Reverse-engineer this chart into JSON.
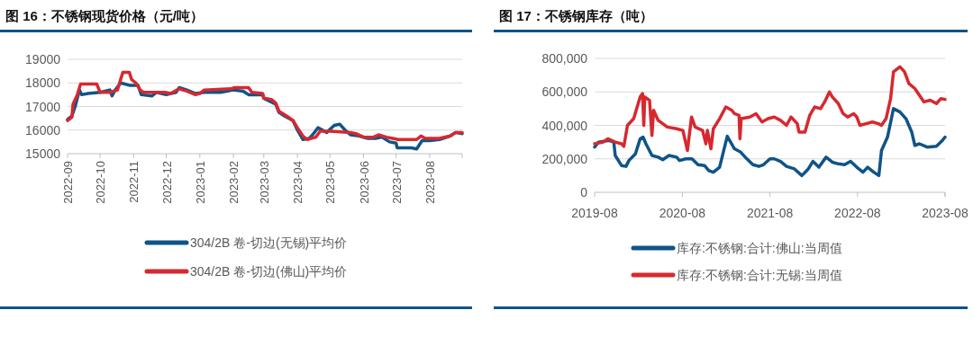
{
  "chart_data": [
    {
      "type": "line",
      "title": "图 16：不锈钢现货价格（元/吨）",
      "xlim": [
        "2022-09-01",
        "2023-08-31"
      ],
      "xticks": [
        "2022-09",
        "2022-10",
        "2022-11",
        "2022-12",
        "2023-01",
        "2023-02",
        "2023-03",
        "2023-04",
        "2023-05",
        "2023-06",
        "2023-07",
        "2023-08"
      ],
      "ylim": [
        15000,
        19000
      ],
      "yticks": [
        15000,
        16000,
        17000,
        18000,
        19000
      ],
      "grid": "y",
      "legend": "bottom",
      "marker": "none",
      "line_style": "solid",
      "series": [
        {
          "name": "304/2B 卷-切边(无锡)平均价",
          "color": "#0f5488",
          "x": [
            "2022-09-01",
            "2022-09-05",
            "2022-09-08",
            "2022-09-12",
            "2022-09-14",
            "2022-09-20",
            "2022-10-01",
            "2022-10-10",
            "2022-10-12",
            "2022-10-15",
            "2022-10-20",
            "2022-10-28",
            "2022-11-05",
            "2022-11-08",
            "2022-11-18",
            "2022-11-22",
            "2022-12-01",
            "2022-12-10",
            "2022-12-13",
            "2022-12-20",
            "2022-12-28",
            "2023-01-05",
            "2023-01-20",
            "2023-02-01",
            "2023-02-10",
            "2023-02-15",
            "2023-02-28",
            "2023-03-01",
            "2023-03-12",
            "2023-03-15",
            "2023-03-20",
            "2023-03-28",
            "2023-04-01",
            "2023-04-06",
            "2023-04-12",
            "2023-04-15",
            "2023-04-20",
            "2023-04-28",
            "2023-05-05",
            "2023-05-10",
            "2023-05-15",
            "2023-05-20",
            "2023-05-28",
            "2023-06-05",
            "2023-06-12",
            "2023-06-18",
            "2023-06-25",
            "2023-07-01",
            "2023-07-02",
            "2023-07-15",
            "2023-07-20",
            "2023-07-25",
            "2023-08-01",
            "2023-08-10",
            "2023-08-20",
            "2023-08-25",
            "2023-08-31"
          ],
          "values": [
            16450,
            16600,
            17000,
            17700,
            17500,
            17550,
            17600,
            17700,
            17450,
            17700,
            18000,
            17900,
            17900,
            17500,
            17450,
            17600,
            17500,
            17600,
            17800,
            17700,
            17550,
            17600,
            17600,
            17700,
            17650,
            17500,
            17500,
            17350,
            17100,
            16750,
            16600,
            16400,
            16000,
            15600,
            15650,
            15800,
            16100,
            15900,
            16200,
            16250,
            16000,
            15800,
            15750,
            15650,
            15650,
            15700,
            15500,
            15450,
            15250,
            15250,
            15200,
            15550,
            15550,
            15600,
            15750,
            15900,
            15850
          ]
        },
        {
          "name": "304/2B 卷-切边(佛山)平均价",
          "color": "#d7282f",
          "x": [
            "2022-09-01",
            "2022-09-05",
            "2022-09-06",
            "2022-09-10",
            "2022-09-13",
            "2022-09-28",
            "2022-10-01",
            "2022-10-10",
            "2022-10-17",
            "2022-10-20",
            "2022-10-22",
            "2022-10-28",
            "2022-10-30",
            "2022-11-03",
            "2022-11-07",
            "2022-11-10",
            "2022-11-30",
            "2022-12-05",
            "2022-12-13",
            "2022-12-20",
            "2022-12-28",
            "2023-01-01",
            "2023-01-05",
            "2023-01-30",
            "2023-02-02",
            "2023-02-15",
            "2023-02-18",
            "2023-02-28",
            "2023-03-01",
            "2023-03-08",
            "2023-03-12",
            "2023-03-15",
            "2023-03-22",
            "2023-03-28",
            "2023-04-01",
            "2023-04-06",
            "2023-04-10",
            "2023-04-18",
            "2023-04-22",
            "2023-05-01",
            "2023-05-20",
            "2023-05-25",
            "2023-06-01",
            "2023-06-10",
            "2023-06-15",
            "2023-06-22",
            "2023-06-28",
            "2023-07-03",
            "2023-07-20",
            "2023-07-24",
            "2023-07-28",
            "2023-08-10",
            "2023-08-20",
            "2023-08-25",
            "2023-08-31"
          ],
          "values": [
            16400,
            16550,
            17100,
            17500,
            17950,
            17950,
            17600,
            17600,
            17700,
            18150,
            18450,
            18450,
            18150,
            18000,
            17700,
            17600,
            17600,
            17550,
            17750,
            17650,
            17500,
            17550,
            17700,
            17750,
            17800,
            17800,
            17600,
            17550,
            17350,
            17300,
            17150,
            16800,
            16600,
            16400,
            16100,
            15750,
            15600,
            15700,
            15950,
            15950,
            15900,
            15850,
            15700,
            15700,
            15800,
            15700,
            15650,
            15600,
            15600,
            15750,
            15650,
            15650,
            15750,
            15900,
            15900
          ]
        }
      ]
    },
    {
      "type": "line",
      "title": "图 17：不锈钢库存（吨）",
      "xlim": [
        "2019-08-01",
        "2023-08-01"
      ],
      "xticks": [
        "2019-08",
        "2020-08",
        "2021-08",
        "2022-08",
        "2023-08"
      ],
      "ylim": [
        0,
        800000
      ],
      "yticks": [
        0,
        {
          "value": 200000,
          "label": "200,000"
        },
        {
          "value": 400000,
          "label": "400,000"
        },
        {
          "value": 600000,
          "label": "600,000"
        },
        {
          "value": 800000,
          "label": "800,000"
        }
      ],
      "grid": "y",
      "legend": "bottom",
      "marker": "none",
      "line_style": "solid",
      "series": [
        {
          "name": "库存:不锈钢:合计:佛山:当周值",
          "color": "#0f5488",
          "x": [
            "2019-08-01",
            "2019-08-17",
            "2019-10-01",
            "2019-10-20",
            "2019-10-26",
            "2019-11-21",
            "2019-12-10",
            "2019-12-22",
            "2020-01-18",
            "2020-02-07",
            "2020-02-19",
            "2020-03-02",
            "2020-03-27",
            "2020-04-22",
            "2020-05-11",
            "2020-06-06",
            "2020-07-08",
            "2020-07-20",
            "2020-08-15",
            "2020-09-10",
            "2020-10-05",
            "2020-11-01",
            "2020-11-19",
            "2020-12-08",
            "2021-01-03",
            "2021-02-04",
            "2021-03-06",
            "2021-04-01",
            "2021-04-20",
            "2021-05-22",
            "2021-06-16",
            "2021-07-05",
            "2021-08-01",
            "2021-08-19",
            "2021-09-14",
            "2021-10-09",
            "2021-11-11",
            "2021-12-12",
            "2022-01-08",
            "2022-01-27",
            "2022-02-21",
            "2022-03-23",
            "2022-04-18",
            "2022-05-13",
            "2022-06-08",
            "2022-07-03",
            "2022-07-29",
            "2022-08-24",
            "2022-09-12",
            "2022-10-08",
            "2022-10-29",
            "2022-11-09",
            "2022-12-04",
            "2022-12-29",
            "2023-01-25",
            "2023-02-19",
            "2023-03-15",
            "2023-03-28",
            "2023-04-16",
            "2023-05-18",
            "2023-06-26",
            "2023-07-21",
            "2023-08-01"
          ],
          "values": [
            270000,
            300000,
            310000,
            300000,
            220000,
            160000,
            155000,
            190000,
            230000,
            320000,
            330000,
            290000,
            220000,
            210000,
            195000,
            220000,
            210000,
            190000,
            200000,
            200000,
            165000,
            160000,
            130000,
            120000,
            150000,
            335000,
            260000,
            240000,
            210000,
            165000,
            155000,
            165000,
            200000,
            200000,
            185000,
            155000,
            140000,
            100000,
            140000,
            185000,
            150000,
            210000,
            180000,
            170000,
            165000,
            185000,
            150000,
            120000,
            150000,
            120000,
            100000,
            250000,
            330000,
            500000,
            480000,
            440000,
            360000,
            280000,
            290000,
            270000,
            275000,
            310000,
            330000
          ]
        },
        {
          "name": "库存:不锈钢:合计:无锡:当周值",
          "color": "#d7282f",
          "x": [
            "2019-08-01",
            "2019-09-06",
            "2019-09-25",
            "2019-10-26",
            "2019-11-21",
            "2019-12-01",
            "2019-12-16",
            "2020-01-11",
            "2020-02-07",
            "2020-02-17",
            "2020-02-22",
            "2020-02-26",
            "2020-03-17",
            "2020-03-27",
            "2020-04-03",
            "2020-04-22",
            "2020-05-30",
            "2020-07-08",
            "2020-08-03",
            "2020-08-22",
            "2020-09-08",
            "2020-09-23",
            "2020-10-24",
            "2020-11-07",
            "2020-11-13",
            "2020-11-28",
            "2020-12-08",
            "2021-01-03",
            "2021-01-29",
            "2021-02-23",
            "2021-03-06",
            "2021-03-25",
            "2021-03-29",
            "2021-04-03",
            "2021-05-09",
            "2021-06-04",
            "2021-06-29",
            "2021-07-24",
            "2021-08-19",
            "2021-09-14",
            "2021-10-09",
            "2021-10-28",
            "2021-11-23",
            "2021-11-30",
            "2021-12-25",
            "2022-01-14",
            "2022-02-03",
            "2022-02-28",
            "2022-03-17",
            "2022-04-06",
            "2022-04-18",
            "2022-05-13",
            "2022-06-02",
            "2022-06-21",
            "2022-07-16",
            "2022-07-29",
            "2022-08-11",
            "2022-09-06",
            "2022-10-02",
            "2022-10-27",
            "2022-11-09",
            "2022-11-28",
            "2022-12-17",
            "2022-12-29",
            "2023-01-25",
            "2023-02-13",
            "2023-03-03",
            "2023-03-28",
            "2023-04-16",
            "2023-05-05",
            "2023-05-31",
            "2023-06-26",
            "2023-07-15",
            "2023-08-01"
          ],
          "values": [
            290000,
            300000,
            320000,
            300000,
            290000,
            275000,
            400000,
            440000,
            570000,
            590000,
            400000,
            570000,
            550000,
            340000,
            490000,
            430000,
            390000,
            380000,
            370000,
            250000,
            450000,
            390000,
            370000,
            290000,
            370000,
            260000,
            380000,
            440000,
            510000,
            490000,
            470000,
            460000,
            320000,
            440000,
            450000,
            470000,
            420000,
            440000,
            450000,
            430000,
            400000,
            450000,
            410000,
            360000,
            360000,
            460000,
            510000,
            500000,
            540000,
            600000,
            570000,
            530000,
            470000,
            450000,
            470000,
            450000,
            400000,
            410000,
            420000,
            410000,
            400000,
            440000,
            560000,
            720000,
            750000,
            720000,
            650000,
            620000,
            580000,
            540000,
            550000,
            530000,
            560000,
            555000
          ]
        }
      ]
    }
  ]
}
